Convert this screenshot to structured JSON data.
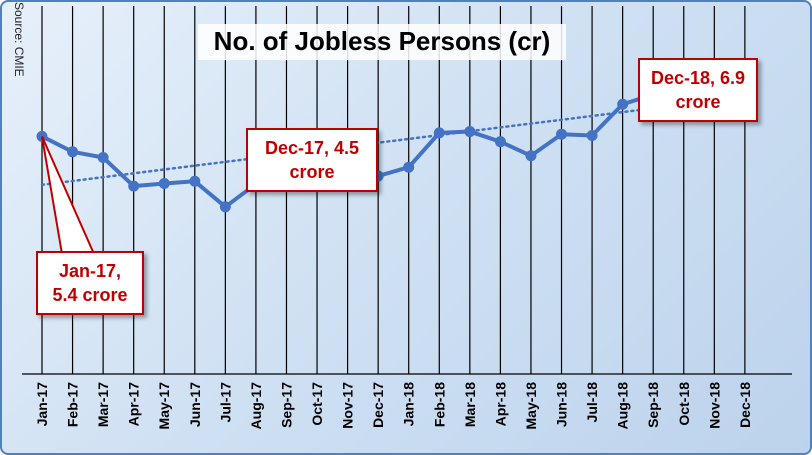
{
  "source": "Source: CMIE",
  "chart_data": {
    "type": "line",
    "title": "No. of Jobless Persons (cr)",
    "categories": [
      "Jan-17",
      "Feb-17",
      "Mar-17",
      "Apr-17",
      "May-17",
      "Jun-17",
      "Jul-17",
      "Aug-17",
      "Sep-17",
      "Oct-17",
      "Nov-17",
      "Dec-17",
      "Jan-18",
      "Feb-18",
      "Mar-18",
      "Apr-18",
      "May-18",
      "Jun-18",
      "Jul-18",
      "Aug-18",
      "Sep-18",
      "Oct-18",
      "Nov-18",
      "Dec-18"
    ],
    "series": [
      {
        "values": [
          5.4,
          5.05,
          4.92,
          4.27,
          4.33,
          4.38,
          3.8,
          4.32,
          4.73,
          4.94,
          4.5,
          4.5,
          4.7,
          5.48,
          5.51,
          5.28,
          4.96,
          5.45,
          5.42,
          6.13,
          6.35,
          6.53,
          6.36,
          6.9
        ],
        "color": "#4472c4"
      }
    ],
    "trendline": {
      "style": "dotted",
      "color": "#4472c4",
      "start": 4.3,
      "end": 6.3
    },
    "ylim": [
      0,
      8
    ],
    "grid": "vertical",
    "annotations": [
      {
        "category": "Jan-17",
        "lines": [
          "Jan-17,",
          "5.4 crore"
        ]
      },
      {
        "category": "Dec-17",
        "lines": [
          "Dec-17, 4.5",
          "crore"
        ]
      },
      {
        "category": "Dec-18",
        "lines": [
          "Dec-18, 6.9",
          "crore"
        ]
      }
    ],
    "colors": {
      "callout": "#c00000",
      "grid": "#000000",
      "background": "#d6e4f4"
    }
  }
}
